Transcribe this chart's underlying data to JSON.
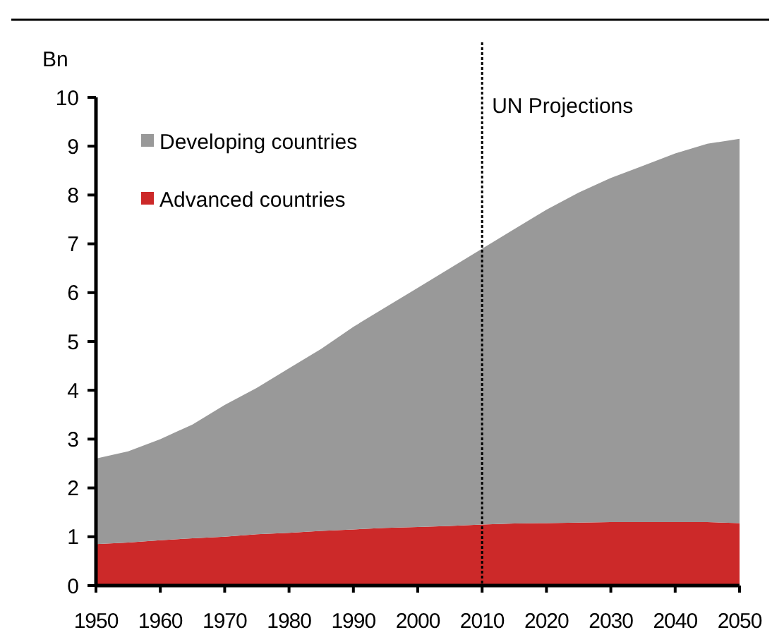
{
  "chart_data": {
    "type": "area",
    "stacked": true,
    "ylabel": "Bn",
    "x": [
      1950,
      1955,
      1960,
      1965,
      1970,
      1975,
      1980,
      1985,
      1990,
      1995,
      2000,
      2005,
      2010,
      2015,
      2020,
      2025,
      2030,
      2035,
      2040,
      2045,
      2050
    ],
    "series": [
      {
        "name": "Advanced countries",
        "color": "#cc2929",
        "values": [
          0.85,
          0.88,
          0.93,
          0.97,
          1.0,
          1.05,
          1.08,
          1.12,
          1.15,
          1.18,
          1.2,
          1.22,
          1.25,
          1.27,
          1.28,
          1.29,
          1.3,
          1.3,
          1.3,
          1.3,
          1.28
        ]
      },
      {
        "name": "Developing countries",
        "color": "#999999",
        "values": [
          1.75,
          1.87,
          2.07,
          2.33,
          2.7,
          3.0,
          3.37,
          3.73,
          4.15,
          4.52,
          4.9,
          5.28,
          5.65,
          6.03,
          6.42,
          6.76,
          7.05,
          7.3,
          7.55,
          7.75,
          7.87
        ]
      }
    ],
    "xlim": [
      1950,
      2050
    ],
    "xticks": [
      1950,
      1960,
      1970,
      1980,
      1990,
      2000,
      2010,
      2020,
      2030,
      2040,
      2050
    ],
    "ylim": [
      0,
      10
    ],
    "yticks": [
      0,
      1,
      2,
      3,
      4,
      5,
      6,
      7,
      8,
      9,
      10
    ],
    "ref_lines": [
      {
        "axis": "x",
        "value": 2010,
        "label": "UN Projections",
        "line_style": "dotted"
      }
    ],
    "legend": "top left"
  }
}
